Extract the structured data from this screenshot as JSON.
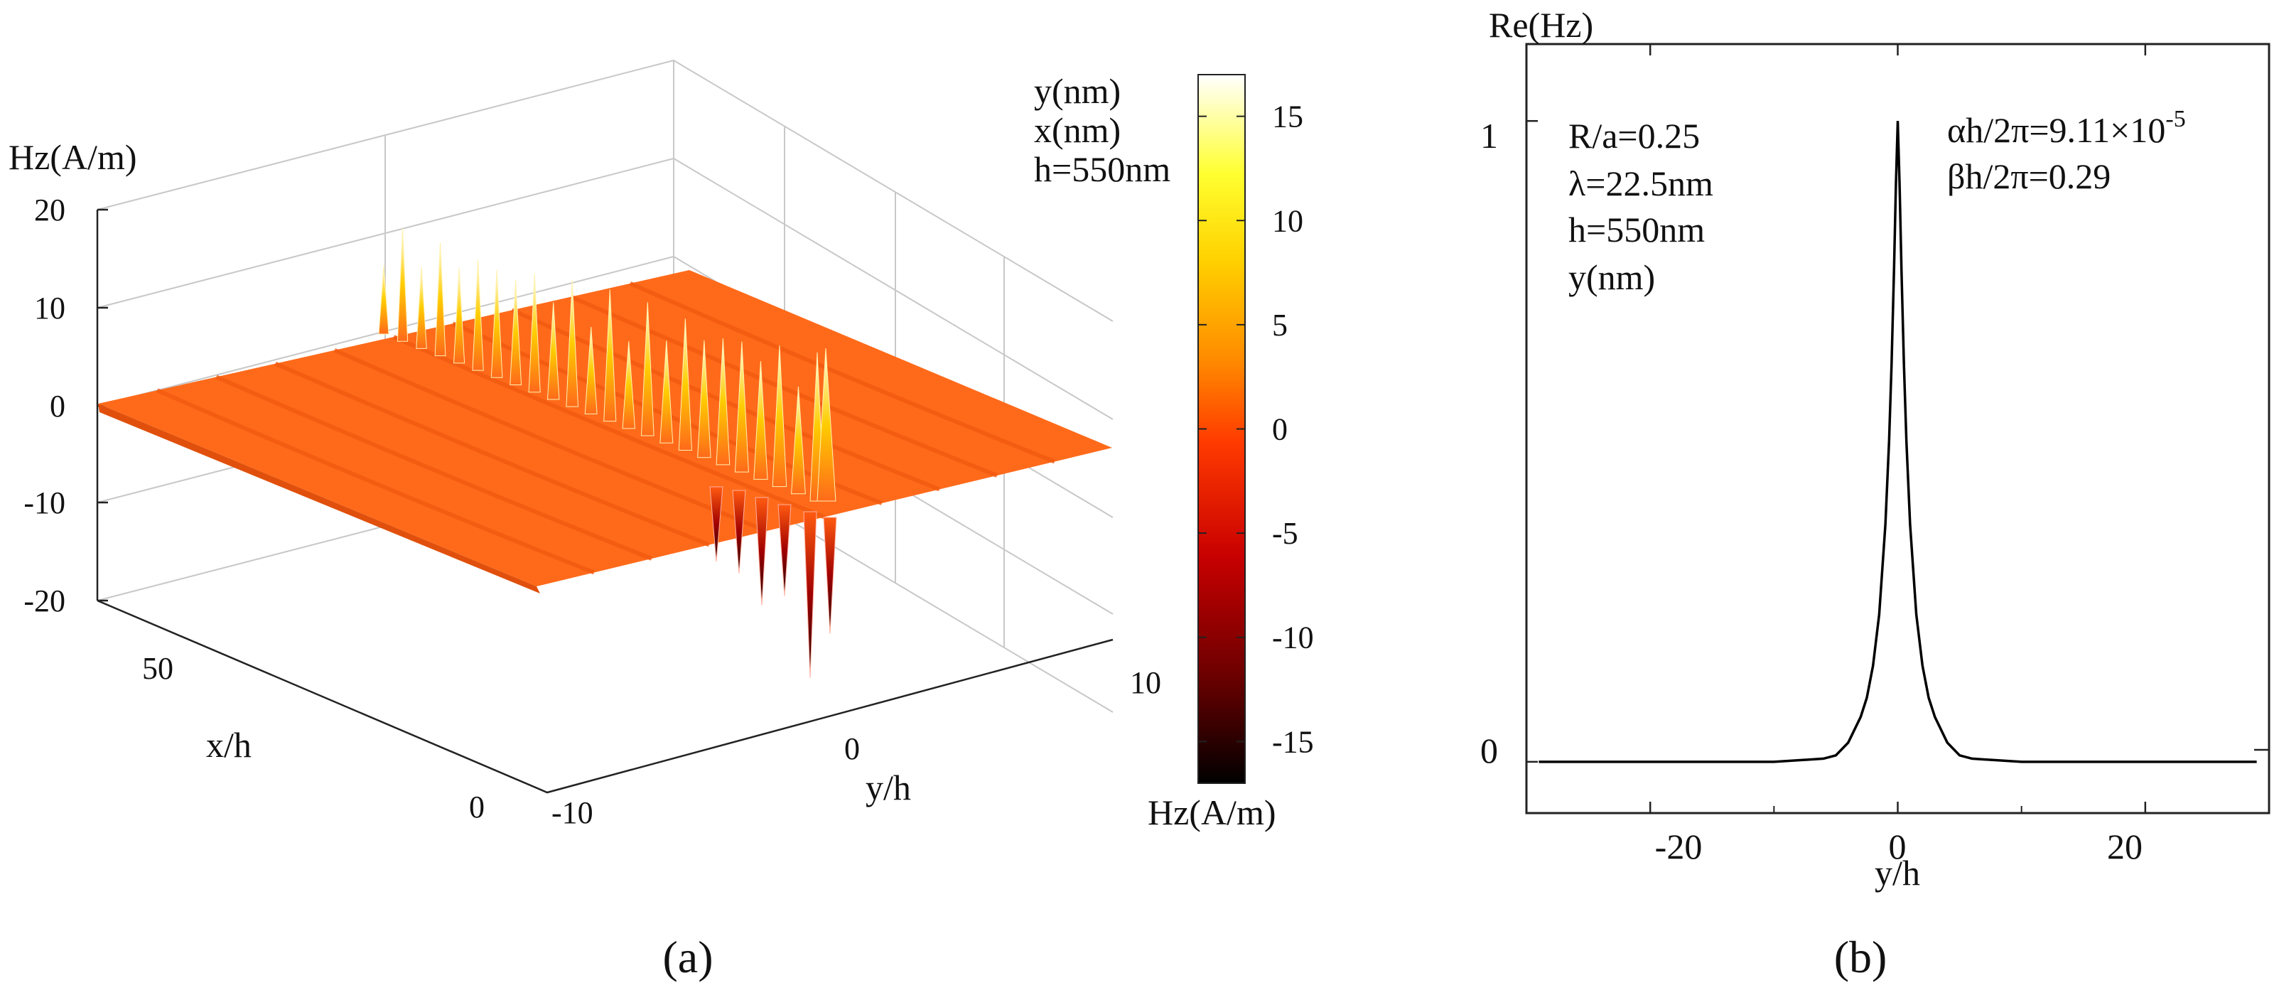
{
  "panel_a": {
    "caption": "(a)",
    "z_label": "Hz(A/m)",
    "z_ticks": [
      "20",
      "10",
      "0",
      "-10",
      "-20"
    ],
    "x_label": "x/h",
    "x_ticks": [
      "50",
      "0"
    ],
    "y_label": "y/h",
    "y_ticks": [
      "-10",
      "0",
      "10"
    ],
    "annotations": [
      "y(nm)",
      "x(nm)",
      "h=550nm"
    ],
    "colorbar": {
      "label": "Hz(A/m)",
      "ticks": [
        "15",
        "10",
        "5",
        "0",
        "-5",
        "-10",
        "-15"
      ],
      "range": [
        -17,
        17
      ],
      "colormap": [
        "#000000",
        "#6b0000",
        "#c80000",
        "#ff3a00",
        "#ff8c00",
        "#ffd200",
        "#ffff30",
        "#ffffff"
      ]
    },
    "surface_color": "#ff6a1a"
  },
  "panel_b": {
    "caption": "(b)",
    "ylabel": "Re(Hz)",
    "xlabel": "y/h",
    "annotations_left": [
      "R/a=0.25",
      "λ=22.5nm",
      "h=550nm",
      "y(nm)"
    ],
    "annotations_right": [
      "αh/2π=9.11×10",
      "βh/2π=0.29"
    ],
    "alpha_exponent": "-5",
    "x_tick_labels": [
      "-20",
      "0",
      "20"
    ],
    "y_tick_labels": [
      "1",
      "0"
    ]
  },
  "chart_data": [
    {
      "type": "surface",
      "title": "",
      "xlabel": "x/h",
      "ylabel": "y/h",
      "zlabel": "Hz(A/m)",
      "xlim": [
        0,
        80
      ],
      "ylim": [
        -10,
        10
      ],
      "zlim": [
        -20,
        20
      ],
      "colorbar_range": [
        -17,
        17
      ],
      "x_ticks": [
        0,
        50
      ],
      "y_ticks": [
        -10,
        0,
        10
      ],
      "z_ticks": [
        -20,
        -10,
        0,
        10,
        20
      ],
      "description_values": {
        "peak_max": 17,
        "peak_min": -17,
        "baseline": 0
      }
    },
    {
      "type": "line",
      "title": "",
      "xlabel": "y/h",
      "ylabel": "Re(Hz)",
      "xlim": [
        -30,
        30
      ],
      "ylim": [
        -0.08,
        1.12
      ],
      "x_ticks": [
        -20,
        0,
        20
      ],
      "y_ticks": [
        0,
        1
      ],
      "series": [
        {
          "name": "Re(Hz)",
          "x": [
            -29,
            -10,
            -6,
            -5,
            -4,
            -3,
            -2.5,
            -2,
            -1.5,
            -1,
            -0.7,
            -0.5,
            -0.3,
            -0.15,
            0,
            0.15,
            0.3,
            0.5,
            0.7,
            1,
            1.5,
            2,
            2.5,
            3,
            4,
            5,
            6,
            10,
            29
          ],
          "values": [
            0,
            0,
            0.005,
            0.01,
            0.03,
            0.07,
            0.1,
            0.15,
            0.23,
            0.37,
            0.5,
            0.62,
            0.77,
            0.9,
            1.0,
            0.9,
            0.77,
            0.62,
            0.5,
            0.37,
            0.23,
            0.15,
            0.1,
            0.07,
            0.03,
            0.01,
            0.005,
            0,
            0
          ]
        }
      ]
    }
  ]
}
